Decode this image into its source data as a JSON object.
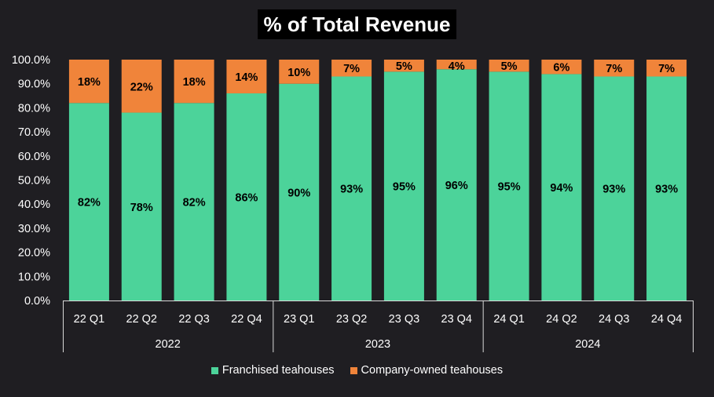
{
  "chart_data": {
    "type": "bar",
    "stacked": true,
    "title": "% of Total Revenue",
    "categories": [
      "22 Q1",
      "22 Q2",
      "22 Q3",
      "22 Q4",
      "23 Q1",
      "23 Q2",
      "23 Q3",
      "23 Q4",
      "24 Q1",
      "24 Q2",
      "24 Q3",
      "24 Q4"
    ],
    "groups": [
      {
        "label": "2022",
        "count": 4
      },
      {
        "label": "2023",
        "count": 4
      },
      {
        "label": "2024",
        "count": 4
      }
    ],
    "series": [
      {
        "name": "Franchised teahouses",
        "color": "#4cd39a",
        "values": [
          82,
          78,
          82,
          86,
          90,
          93,
          95,
          96,
          95,
          94,
          93,
          93
        ],
        "labels": [
          "82%",
          "78%",
          "82%",
          "86%",
          "90%",
          "93%",
          "95%",
          "96%",
          "95%",
          "94%",
          "93%",
          "93%"
        ]
      },
      {
        "name": "Company-owned teahouses",
        "color": "#f0843a",
        "values": [
          18,
          22,
          18,
          14,
          10,
          7,
          5,
          4,
          5,
          6,
          7,
          7
        ],
        "labels": [
          "18%",
          "22%",
          "18%",
          "14%",
          "10%",
          "7%",
          "5%",
          "4%",
          "5%",
          "6%",
          "7%",
          "7%"
        ]
      }
    ],
    "ylim": [
      0,
      100
    ],
    "yticks": [
      "0.0%",
      "10.0%",
      "20.0%",
      "30.0%",
      "40.0%",
      "50.0%",
      "60.0%",
      "70.0%",
      "80.0%",
      "90.0%",
      "100.0%"
    ],
    "xlabel": "",
    "ylabel": "",
    "grid": false,
    "legend_position": "bottom"
  }
}
